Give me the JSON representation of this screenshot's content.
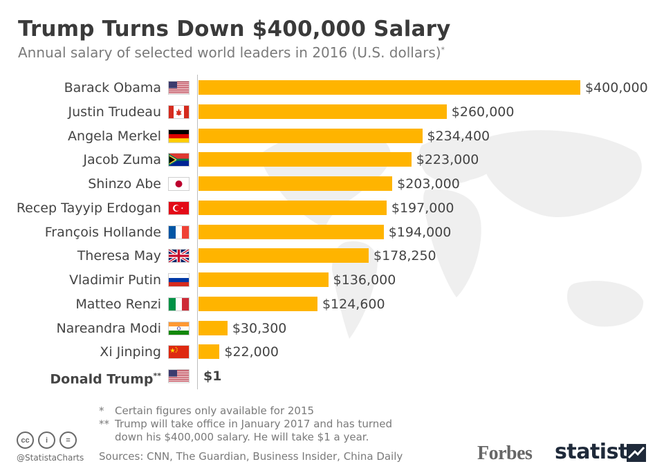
{
  "header": {
    "title": "Trump Turns Down $400,000 Salary",
    "subtitle": "Annual salary of selected world leaders in 2016 (U.S. dollars)",
    "subtitle_mark": "*"
  },
  "chart_data": {
    "type": "bar",
    "orientation": "horizontal",
    "title": "Trump Turns Down $400,000 Salary",
    "subtitle": "Annual salary of selected world leaders in 2016 (U.S. dollars)",
    "categories": [
      "Barack Obama",
      "Justin Trudeau",
      "Angela Merkel",
      "Jacob Zuma",
      "Shinzo Abe",
      "Recep Tayyip Erdogan",
      "François Hollande",
      "Theresa May",
      "Vladimir Putin",
      "Matteo Renzi",
      "Nareandra Modi",
      "Xi Jinping",
      "Donald Trump"
    ],
    "values": [
      400000,
      260000,
      234400,
      223000,
      203000,
      197000,
      194000,
      178250,
      136000,
      124600,
      30300,
      22000,
      1
    ],
    "value_labels": [
      "$400,000",
      "$260,000",
      "$234,400",
      "$223,000",
      "$203,000",
      "$197,000",
      "$194,000",
      "$178,250",
      "$136,000",
      "$124,600",
      "$30,300",
      "$22,000",
      "$1"
    ],
    "flags": [
      "us",
      "ca",
      "de",
      "za",
      "jp",
      "tr",
      "fr",
      "gb",
      "ru",
      "it",
      "in",
      "cn",
      "us"
    ],
    "label_marks": [
      "",
      "",
      "",
      "",
      "",
      "",
      "",
      "",
      "",
      "",
      "",
      "",
      "**"
    ],
    "highlight": [
      "Donald Trump"
    ],
    "bar_color": "#ffb400",
    "xlim": [
      0,
      400000
    ],
    "grid": false,
    "legend": "none"
  },
  "footnotes": [
    {
      "mark": "*",
      "text": "Certain figures only available for 2015"
    },
    {
      "mark": "**",
      "text": "Trump will take office in January 2017 and has turned down his $400,000 salary. He will take $1 a year."
    }
  ],
  "sources": "Sources: CNN, The Guardian, Business Insider, China Daily",
  "branding": {
    "handle": "@StatistaCharts",
    "forbes": "Forbes",
    "statista": "statista",
    "cc_icons": [
      "cc",
      "by",
      "nd"
    ],
    "cc_glyphs": [
      "cc",
      "i",
      "="
    ]
  }
}
